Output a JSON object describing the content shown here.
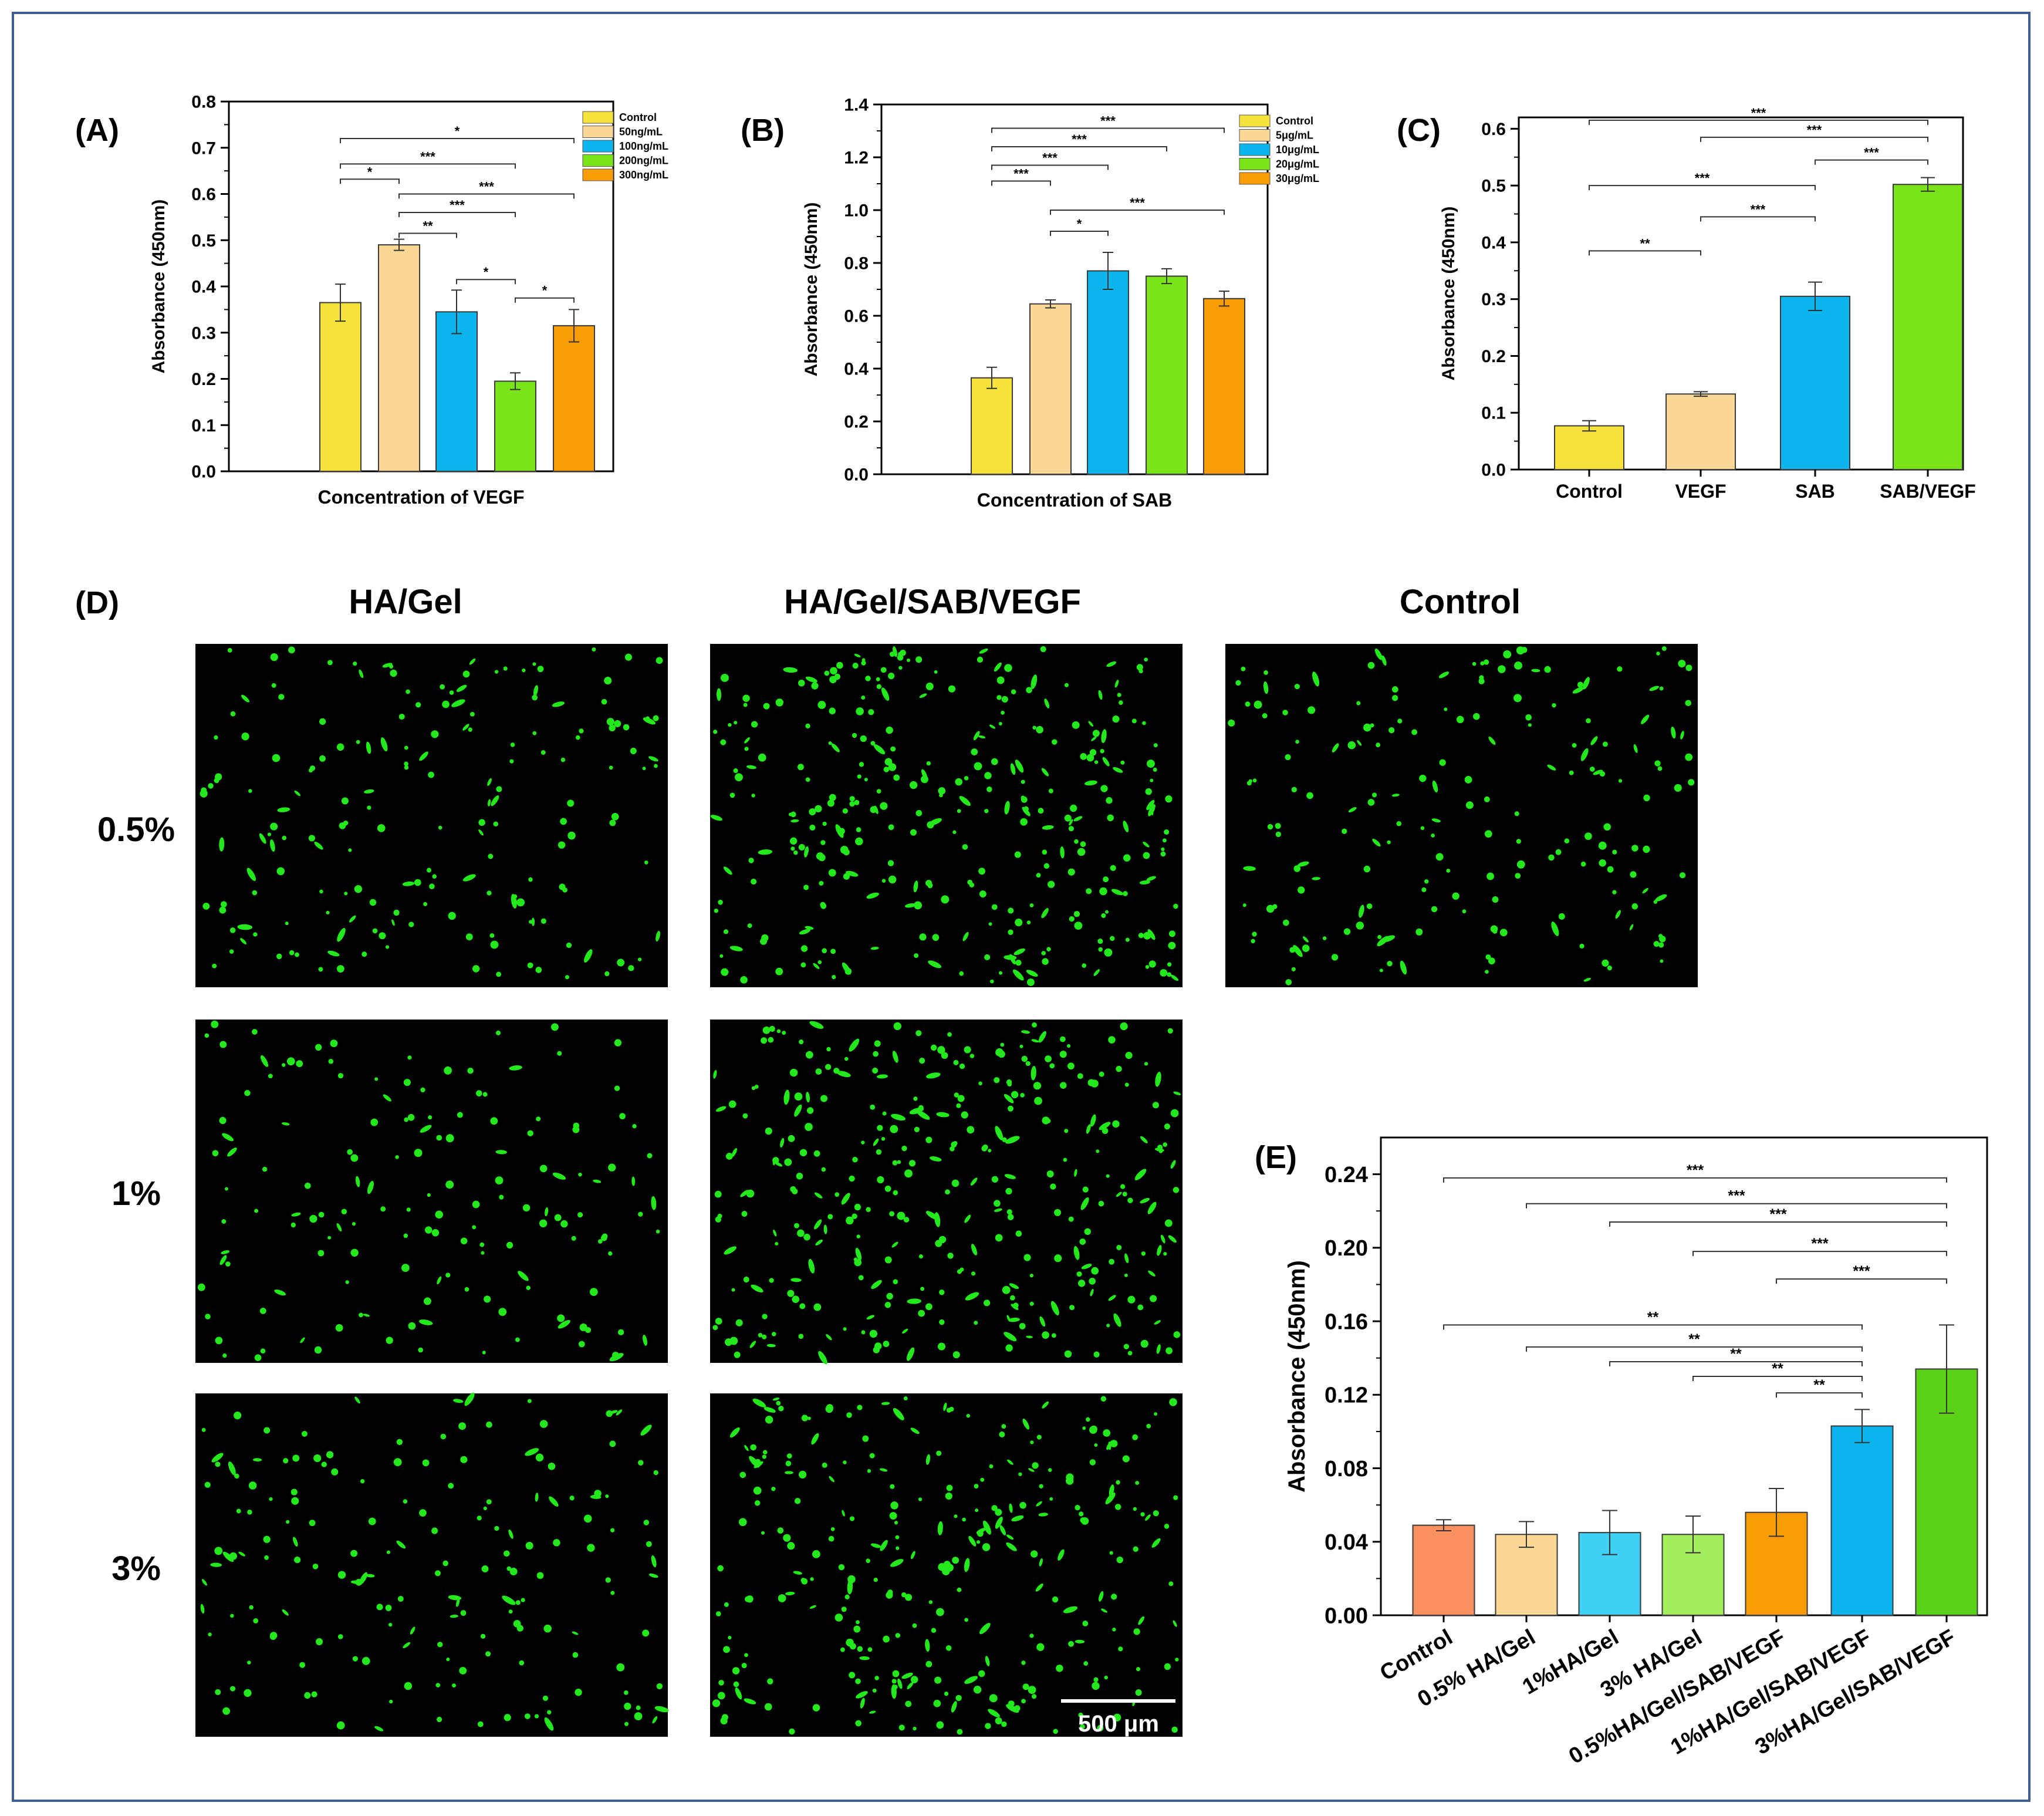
{
  "panels": {
    "A": "(A)",
    "B": "(B)",
    "C": "(C)",
    "D": "(D)",
    "E": "(E)"
  },
  "colors": {
    "yellow": "#f5e23a",
    "peach": "#fbd896",
    "blue": "#0ab4ec",
    "green": "#7be31a",
    "orange": "#fa9c06",
    "salmon": "#fa8f5f",
    "lightblue": "#40cff5",
    "lightgreen": "#a4ee5e",
    "darkgreen": "#5bd218",
    "frame": "#3f5f8f",
    "cell": "#22e81c"
  },
  "chart_data": [
    {
      "id": "A",
      "type": "bar",
      "xlabel": "Concentration of VEGF",
      "ylabel": "Absorbance (450nm)",
      "ylim": [
        0,
        0.8
      ],
      "yticks": [
        "0.0",
        "0.1",
        "0.2",
        "0.3",
        "0.4",
        "0.5",
        "0.6",
        "0.7",
        "0.8"
      ],
      "legend": [
        "Control",
        "50ng/mL",
        "100ng/mL",
        "200ng/mL",
        "300ng/mL"
      ],
      "legend_position": "top-right",
      "values": [
        0.365,
        0.49,
        0.345,
        0.195,
        0.315
      ],
      "errors": [
        0.04,
        0.012,
        0.047,
        0.018,
        0.035
      ],
      "colors": [
        "#f5e23a",
        "#fbd896",
        "#0ab4ec",
        "#7be31a",
        "#fa9c06"
      ],
      "brackets": [
        {
          "from": 0,
          "to": 4,
          "y": 0.72,
          "label": "*"
        },
        {
          "from": 0,
          "to": 3,
          "y": 0.665,
          "label": "***"
        },
        {
          "from": 0,
          "to": 1,
          "y": 0.632,
          "label": "*"
        },
        {
          "from": 1,
          "to": 4,
          "y": 0.6,
          "label": "***"
        },
        {
          "from": 1,
          "to": 3,
          "y": 0.56,
          "label": "***"
        },
        {
          "from": 1,
          "to": 2,
          "y": 0.515,
          "label": "**"
        },
        {
          "from": 2,
          "to": 3,
          "y": 0.415,
          "label": "*"
        },
        {
          "from": 3,
          "to": 4,
          "y": 0.375,
          "label": "*"
        }
      ]
    },
    {
      "id": "B",
      "type": "bar",
      "xlabel": "Concentration of SAB",
      "ylabel": "Absorbance (450nm)",
      "ylim": [
        0,
        1.4
      ],
      "yticks": [
        "0.0",
        "0.2",
        "0.4",
        "0.6",
        "0.8",
        "1.0",
        "1.2",
        "1.4"
      ],
      "legend": [
        "Control",
        "5μg/mL",
        "10μg/mL",
        "20μg/mL",
        "30μg/mL"
      ],
      "legend_position": "top-right",
      "values": [
        0.365,
        0.645,
        0.77,
        0.75,
        0.665
      ],
      "errors": [
        0.04,
        0.015,
        0.07,
        0.028,
        0.028
      ],
      "colors": [
        "#f5e23a",
        "#fbd896",
        "#0ab4ec",
        "#7be31a",
        "#fa9c06"
      ],
      "brackets": [
        {
          "from": 0,
          "to": 4,
          "y": 1.31,
          "label": "***"
        },
        {
          "from": 0,
          "to": 3,
          "y": 1.24,
          "label": "***"
        },
        {
          "from": 0,
          "to": 2,
          "y": 1.17,
          "label": "***"
        },
        {
          "from": 0,
          "to": 1,
          "y": 1.11,
          "label": "***"
        },
        {
          "from": 1,
          "to": 4,
          "y": 1.0,
          "label": "***"
        },
        {
          "from": 1,
          "to": 2,
          "y": 0.92,
          "label": "*"
        }
      ]
    },
    {
      "id": "C",
      "type": "bar",
      "xlabel": "",
      "ylabel": "Absorbance (450nm)",
      "ylim": [
        0,
        0.62
      ],
      "yticks": [
        "0.0",
        "0.1",
        "0.2",
        "0.3",
        "0.4",
        "0.5",
        "0.6"
      ],
      "categories": [
        "Control",
        "VEGF",
        "SAB",
        "SAB/VEGF"
      ],
      "values": [
        0.077,
        0.133,
        0.305,
        0.502
      ],
      "errors": [
        0.009,
        0.004,
        0.025,
        0.012
      ],
      "colors": [
        "#f5e23a",
        "#fbd896",
        "#0ab4ec",
        "#7be31a"
      ],
      "brackets": [
        {
          "from": 0,
          "to": 3,
          "y": 0.615,
          "label": "***"
        },
        {
          "from": 1,
          "to": 3,
          "y": 0.585,
          "label": "***"
        },
        {
          "from": 2,
          "to": 3,
          "y": 0.545,
          "label": "***"
        },
        {
          "from": 0,
          "to": 2,
          "y": 0.5,
          "label": "***"
        },
        {
          "from": 1,
          "to": 2,
          "y": 0.445,
          "label": "***"
        },
        {
          "from": 0,
          "to": 1,
          "y": 0.385,
          "label": "**"
        }
      ]
    },
    {
      "id": "E",
      "type": "bar",
      "xlabel": "",
      "ylabel": "Absorbance (450nm)",
      "ylim": [
        0,
        0.26
      ],
      "yticks": [
        "0.00",
        "0.04",
        "0.08",
        "0.12",
        "0.16",
        "0.20",
        "0.24"
      ],
      "categories": [
        "Control",
        "0.5% HA/Gel",
        "1%HA/Gel",
        "3% HA/Gel",
        "0.5%HA/Gel/SAB/VEGF",
        "1%HA/Gel/SAB/VEGF",
        "3%HA/Gel/SAB/VEGF"
      ],
      "values": [
        0.049,
        0.044,
        0.045,
        0.044,
        0.056,
        0.103,
        0.134
      ],
      "errors": [
        0.003,
        0.007,
        0.012,
        0.01,
        0.013,
        0.009,
        0.024
      ],
      "colors": [
        "#fa8f5f",
        "#fbd896",
        "#40cff5",
        "#a4ee5e",
        "#fa9c06",
        "#0ab4ec",
        "#5bd218"
      ],
      "brackets": [
        {
          "from": 0,
          "to": 6,
          "y": 0.238,
          "label": "***"
        },
        {
          "from": 1,
          "to": 6,
          "y": 0.224,
          "label": "***"
        },
        {
          "from": 2,
          "to": 6,
          "y": 0.214,
          "label": "***"
        },
        {
          "from": 3,
          "to": 6,
          "y": 0.198,
          "label": "***"
        },
        {
          "from": 4,
          "to": 6,
          "y": 0.183,
          "label": "***"
        },
        {
          "from": 0,
          "to": 5,
          "y": 0.158,
          "label": "**"
        },
        {
          "from": 1,
          "to": 5,
          "y": 0.146,
          "label": "**"
        },
        {
          "from": 2,
          "to": 5,
          "y": 0.138,
          "label": "**"
        },
        {
          "from": 3,
          "to": 5,
          "y": 0.13,
          "label": "**"
        },
        {
          "from": 4,
          "to": 5,
          "y": 0.121,
          "label": "**"
        }
      ]
    }
  ],
  "micrographs": {
    "columns": [
      "HA/Gel",
      "HA/Gel/SAB/VEGF",
      "Control"
    ],
    "rows": [
      "0.5%",
      "1%",
      "3%"
    ],
    "scale_bar": "500 μm",
    "density": [
      [
        180,
        330,
        190
      ],
      [
        150,
        340
      ],
      [
        170,
        290
      ]
    ]
  }
}
